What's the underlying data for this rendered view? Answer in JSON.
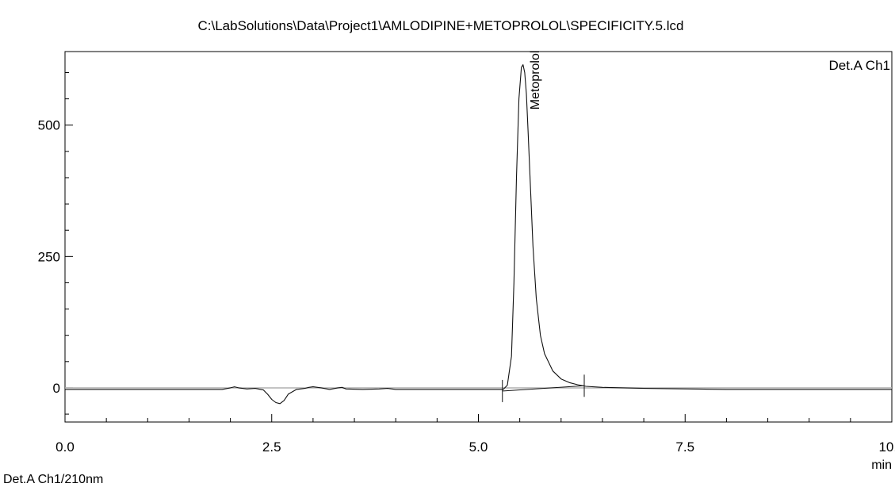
{
  "chart_data": {
    "type": "line",
    "title": "C:\\LabSolutions\\Data\\Project1\\AMLODIPINE+METOPROLOL\\SPECIFICITY.5.lcd",
    "channel_label": "Det.A Ch1",
    "xlabel": "min",
    "ylabel": "",
    "xlim": [
      0.0,
      10.0
    ],
    "ylim": [
      -65,
      640
    ],
    "x_ticks": [
      0.0,
      2.5,
      5.0,
      7.5,
      10.0
    ],
    "x_tick_labels": [
      "0.0",
      "2.5",
      "5.0",
      "7.5",
      "10.0"
    ],
    "y_ticks": [
      0,
      250,
      500
    ],
    "y_tick_labels": [
      "0",
      "250",
      "500"
    ],
    "grid": false,
    "series": [
      {
        "x": [
          0.0,
          1.9,
          2.0,
          2.05,
          2.1,
          2.2,
          2.3,
          2.4,
          2.45,
          2.5,
          2.55,
          2.6,
          2.65,
          2.7,
          2.8,
          2.9,
          2.95,
          3.0,
          3.1,
          3.2,
          3.3,
          3.35,
          3.4,
          3.6,
          3.8,
          3.9,
          4.0,
          4.5,
          5.0,
          5.3,
          5.35,
          5.4,
          5.43,
          5.46,
          5.49,
          5.52,
          5.54,
          5.56,
          5.58,
          5.6,
          5.63,
          5.66,
          5.7,
          5.75,
          5.8,
          5.9,
          6.0,
          6.1,
          6.2,
          6.3,
          6.5,
          7.0,
          8.0,
          9.0,
          10.0
        ],
        "y": [
          -3,
          -3,
          0,
          2,
          0,
          -2,
          -1,
          -4,
          -12,
          -22,
          -28,
          -30,
          -24,
          -12,
          -3,
          -1,
          1,
          2,
          0,
          -3,
          0,
          1,
          -2,
          -3,
          -2,
          -1,
          -3,
          -3,
          -3,
          -3,
          5,
          60,
          200,
          400,
          550,
          610,
          615,
          600,
          560,
          490,
          380,
          270,
          170,
          100,
          65,
          32,
          17,
          10,
          6,
          3,
          1,
          -1,
          -3,
          -3,
          -3
        ]
      }
    ],
    "baseline": {
      "x": [
        5.29,
        6.28
      ],
      "y": [
        -6,
        4
      ]
    },
    "annotations": [
      {
        "text": "Metoprolol",
        "x": 5.56,
        "y": 615
      }
    ],
    "peak_markers": [
      {
        "x": 5.29,
        "y": -6
      },
      {
        "x": 6.28,
        "y": 4
      }
    ]
  },
  "footer": "Det.A Ch1/210nm"
}
